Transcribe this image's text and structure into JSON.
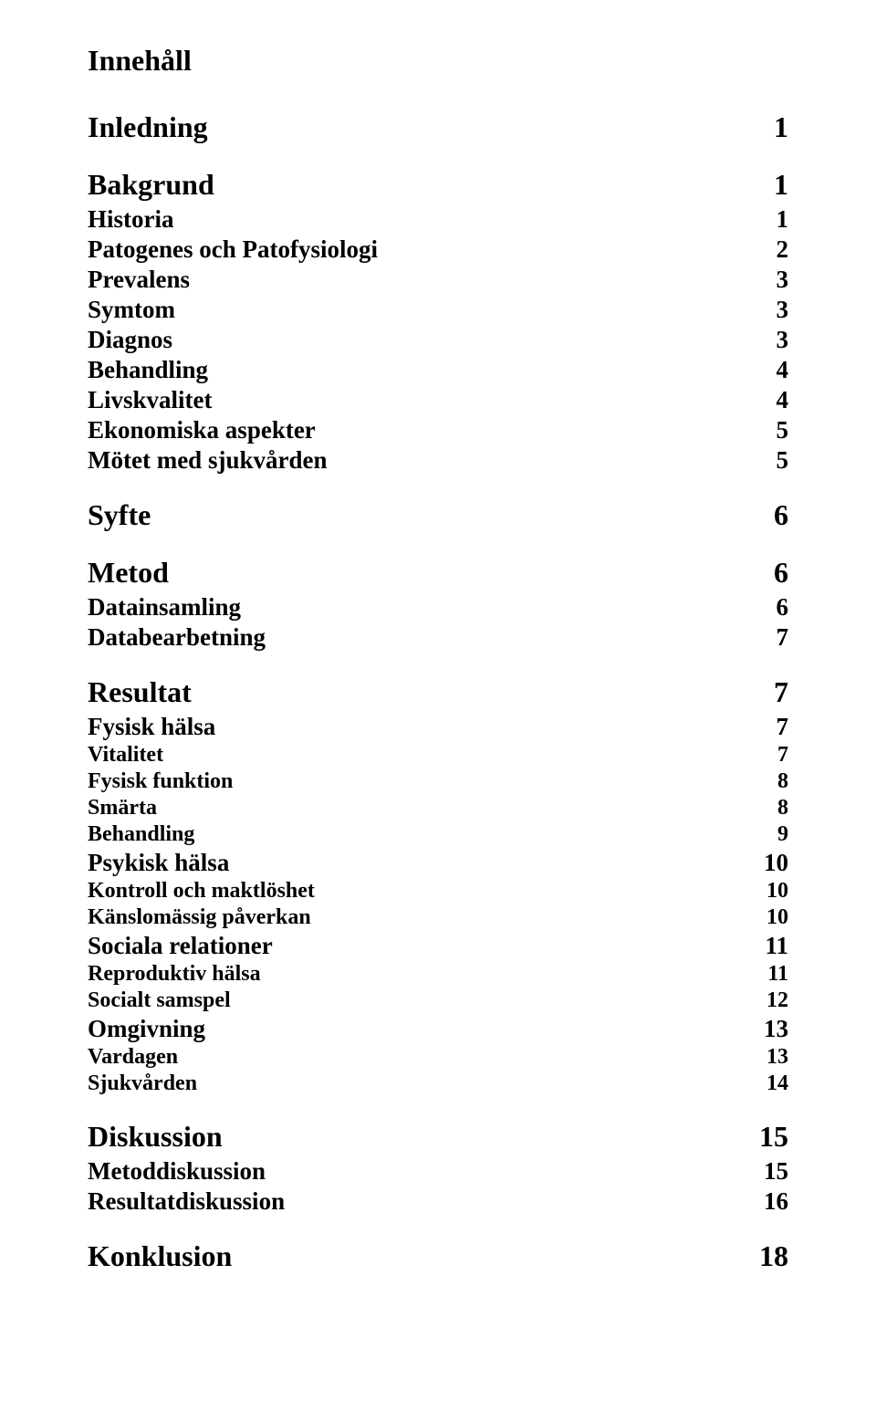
{
  "title": "Innehåll",
  "entries": [
    {
      "label": "Inledning",
      "page": "1",
      "level": "h1"
    },
    {
      "label": "Bakgrund",
      "page": "1",
      "level": "h1"
    },
    {
      "label": "Historia",
      "page": "1",
      "level": "h2"
    },
    {
      "label": "Patogenes och Patofysiologi",
      "page": "2",
      "level": "h2"
    },
    {
      "label": "Prevalens",
      "page": "3",
      "level": "h2"
    },
    {
      "label": "Symtom",
      "page": "3",
      "level": "h2"
    },
    {
      "label": "Diagnos",
      "page": "3",
      "level": "h2"
    },
    {
      "label": "Behandling",
      "page": "4",
      "level": "h2"
    },
    {
      "label": "Livskvalitet",
      "page": "4",
      "level": "h2"
    },
    {
      "label": "Ekonomiska aspekter",
      "page": "5",
      "level": "h2"
    },
    {
      "label": "Mötet med sjukvården",
      "page": "5",
      "level": "h2"
    },
    {
      "label": "Syfte",
      "page": "6",
      "level": "h1"
    },
    {
      "label": "Metod",
      "page": "6",
      "level": "h1"
    },
    {
      "label": "Datainsamling",
      "page": "6",
      "level": "h2"
    },
    {
      "label": "Databearbetning",
      "page": "7",
      "level": "h2"
    },
    {
      "label": "Resultat",
      "page": "7",
      "level": "h1"
    },
    {
      "label": "Fysisk hälsa",
      "page": "7",
      "level": "h2"
    },
    {
      "label": "Vitalitet",
      "page": "7",
      "level": "h3"
    },
    {
      "label": "Fysisk funktion",
      "page": "8",
      "level": "h3"
    },
    {
      "label": "Smärta",
      "page": "8",
      "level": "h3"
    },
    {
      "label": "Behandling",
      "page": "9",
      "level": "h3"
    },
    {
      "label": "Psykisk hälsa",
      "page": "10",
      "level": "h2"
    },
    {
      "label": "Kontroll och maktlöshet",
      "page": "10",
      "level": "h3"
    },
    {
      "label": "Känslomässig påverkan",
      "page": "10",
      "level": "h3"
    },
    {
      "label": "Sociala relationer",
      "page": "11",
      "level": "h2"
    },
    {
      "label": "Reproduktiv hälsa",
      "page": "11",
      "level": "h3"
    },
    {
      "label": "Socialt samspel",
      "page": "12",
      "level": "h3"
    },
    {
      "label": "Omgivning",
      "page": "13",
      "level": "h2"
    },
    {
      "label": "Vardagen",
      "page": "13",
      "level": "h3"
    },
    {
      "label": "Sjukvården",
      "page": "14",
      "level": "h3"
    },
    {
      "label": "Diskussion",
      "page": "15",
      "level": "h1"
    },
    {
      "label": "Metoddiskussion",
      "page": "15",
      "level": "h2"
    },
    {
      "label": "Resultatdiskussion",
      "page": "16",
      "level": "h2"
    },
    {
      "label": "Konklusion",
      "page": "18",
      "level": "h1"
    }
  ]
}
